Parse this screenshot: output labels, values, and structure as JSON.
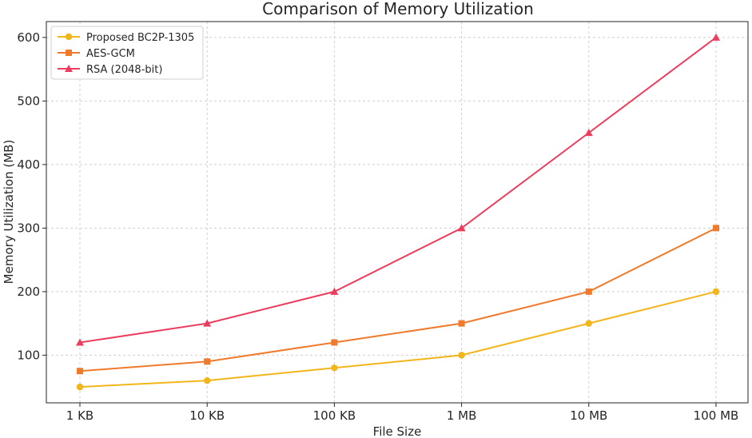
{
  "chart_data": {
    "type": "line",
    "title": "Comparison of Memory Utilization",
    "xlabel": "File Size",
    "ylabel": "Memory Utilization (MB)",
    "categories": [
      "1 KB",
      "10 KB",
      "100 KB",
      "1 MB",
      "10 MB",
      "100 MB"
    ],
    "ylim": [
      25,
      625
    ],
    "yticks": [
      100,
      200,
      300,
      400,
      500,
      600
    ],
    "grid": true,
    "legend_position": "top-left",
    "series": [
      {
        "name": "Proposed BC2P-1305",
        "values": [
          50,
          60,
          80,
          100,
          150,
          200
        ],
        "color": "#f2b61a",
        "marker": "circle"
      },
      {
        "name": "AES-GCM",
        "values": [
          75,
          90,
          120,
          150,
          200,
          300
        ],
        "color": "#f07a2c",
        "marker": "square"
      },
      {
        "name": "RSA (2048-bit)",
        "values": [
          120,
          150,
          200,
          300,
          450,
          600
        ],
        "color": "#ec3d5e",
        "marker": "triangle"
      }
    ]
  }
}
